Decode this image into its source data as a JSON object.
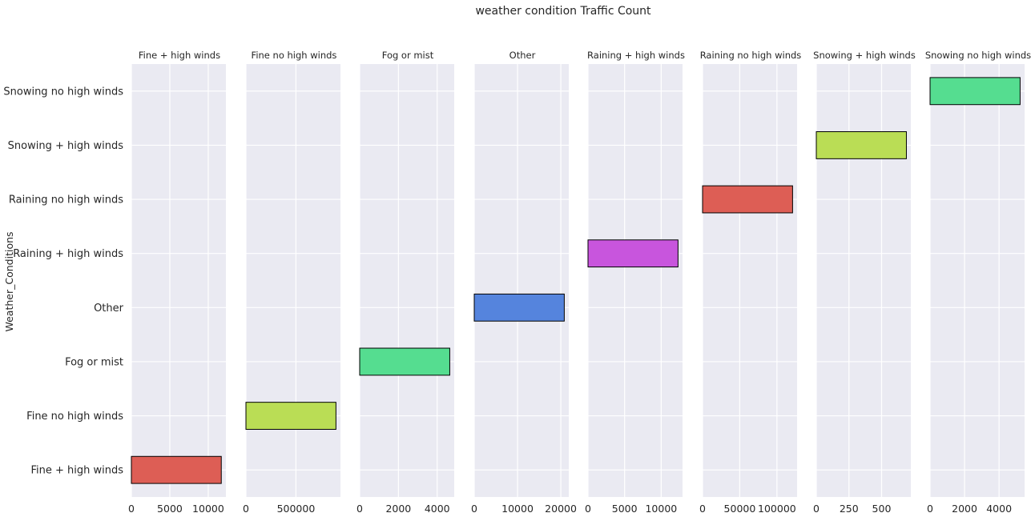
{
  "chart_data": {
    "type": "bar",
    "orientation": "horizontal",
    "title": "weather condition Traffic Count",
    "ylabel": "Weather_Conditions",
    "categories": [
      "Fine + high winds",
      "Fine no high winds",
      "Fog or mist",
      "Other",
      "Raining + high winds",
      "Raining no high winds",
      "Snowing + high winds",
      "Snowing no high winds"
    ],
    "grid": true,
    "panels": [
      {
        "title": "Fine + high winds",
        "category": "Fine + high winds",
        "value": 11700,
        "color": "#dd5e55",
        "xlim": [
          0,
          12300
        ],
        "xticks": [
          0,
          5000,
          10000
        ],
        "xtick_labels": [
          "0",
          "5000",
          "10000"
        ]
      },
      {
        "title": "Fine no high winds",
        "category": "Fine no high winds",
        "value": 900000,
        "color": "#badd55",
        "xlim": [
          0,
          945000
        ],
        "xticks": [
          0,
          500000
        ],
        "xtick_labels": [
          "0",
          "500000"
        ]
      },
      {
        "title": "Fog or mist",
        "category": "Fog or mist",
        "value": 4650,
        "color": "#55dd90",
        "xlim": [
          0,
          4880
        ],
        "xticks": [
          0,
          2000,
          4000
        ],
        "xtick_labels": [
          "0",
          "2000",
          "4000"
        ]
      },
      {
        "title": "Other",
        "category": "Other",
        "value": 20800,
        "color": "#5584dd",
        "xlim": [
          0,
          21840
        ],
        "xticks": [
          0,
          10000,
          20000
        ],
        "xtick_labels": [
          "0",
          "10000",
          "20000"
        ]
      },
      {
        "title": "Raining + high winds",
        "category": "Raining + high winds",
        "value": 12300,
        "color": "#c855dd",
        "xlim": [
          0,
          12915
        ],
        "xticks": [
          0,
          5000,
          10000
        ],
        "xtick_labels": [
          "0",
          "5000",
          "10000"
        ]
      },
      {
        "title": "Raining no high winds",
        "category": "Raining no high winds",
        "value": 121000,
        "color": "#dd5e55",
        "xlim": [
          0,
          127050
        ],
        "xticks": [
          0,
          50000,
          100000
        ],
        "xtick_labels": [
          "0",
          "50000",
          "100000"
        ]
      },
      {
        "title": "Snowing + high winds",
        "category": "Snowing + high winds",
        "value": 690,
        "color": "#badd55",
        "xlim": [
          0,
          724
        ],
        "xticks": [
          0,
          250,
          500
        ],
        "xtick_labels": [
          "0",
          "250",
          "500"
        ]
      },
      {
        "title": "Snowing no high winds",
        "category": "Snowing no high winds",
        "value": 5220,
        "color": "#55dd90",
        "xlim": [
          0,
          5480
        ],
        "xticks": [
          0,
          2000,
          4000
        ],
        "xtick_labels": [
          "0",
          "2000",
          "4000"
        ]
      }
    ]
  }
}
